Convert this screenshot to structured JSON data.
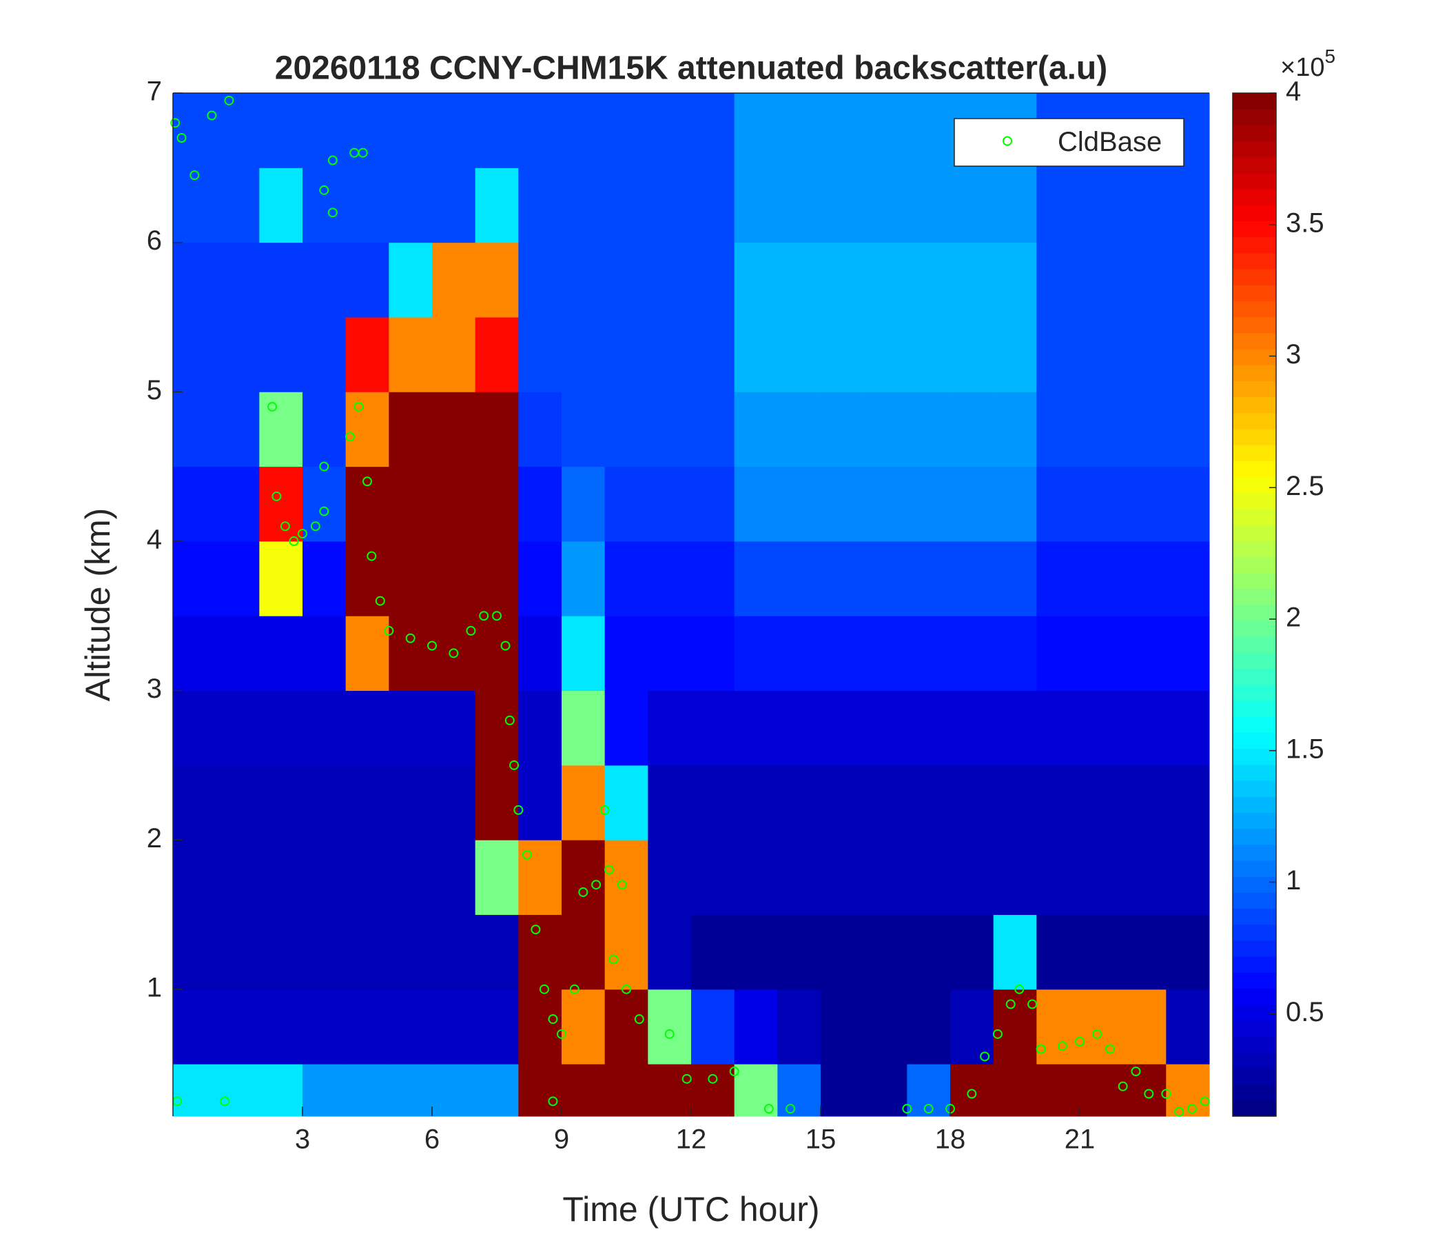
{
  "chart_data": {
    "type": "heatmap",
    "title": "20260118 CCNY-CHM15K attenuated backscatter(a.u)",
    "x_label": "Time (UTC hour)",
    "y_label": "Altitude (km)",
    "xlim": [
      0,
      24
    ],
    "xticks": [
      3,
      6,
      9,
      12,
      15,
      18,
      21
    ],
    "ylim": [
      0.15,
      7
    ],
    "yticks": [
      1,
      2,
      3,
      4,
      5,
      6,
      7
    ],
    "x_edges": [
      0,
      1,
      2,
      3,
      4,
      5,
      6,
      7,
      8,
      9,
      10,
      11,
      12,
      13,
      14,
      15,
      16,
      17,
      18,
      19,
      20,
      21,
      22,
      23,
      24
    ],
    "y_edges": [
      0.15,
      0.5,
      1,
      1.5,
      2,
      2.5,
      3,
      3.5,
      4,
      4.5,
      5,
      5.5,
      6,
      6.5,
      7
    ],
    "values": [
      [
        1.5,
        1.5,
        1.5,
        1.2,
        1.2,
        1.2,
        1.2,
        1.2,
        4,
        4,
        4,
        4,
        4,
        2,
        1,
        0.2,
        0.2,
        1,
        4,
        4,
        4,
        4,
        4,
        3
      ],
      [
        0.4,
        0.4,
        0.4,
        0.4,
        0.4,
        0.4,
        0.4,
        0.4,
        4,
        3,
        4,
        2,
        0.8,
        0.5,
        0.3,
        0.2,
        0.2,
        0.2,
        0.3,
        4,
        3,
        3,
        3,
        0.3
      ],
      [
        0.3,
        0.3,
        0.3,
        0.3,
        0.3,
        0.3,
        0.3,
        0.3,
        4,
        4,
        3,
        0.3,
        0.2,
        0.2,
        0.2,
        0.2,
        0.2,
        0.2,
        0.2,
        1.5,
        0.2,
        0.2,
        0.2,
        0.2
      ],
      [
        0.3,
        0.3,
        0.3,
        0.3,
        0.3,
        0.3,
        0.3,
        2,
        3,
        4,
        3,
        0.3,
        0.3,
        0.3,
        0.3,
        0.3,
        0.3,
        0.3,
        0.3,
        0.3,
        0.3,
        0.3,
        0.3,
        0.3
      ],
      [
        0.35,
        0.35,
        0.35,
        0.35,
        0.35,
        0.35,
        0.35,
        4,
        0.4,
        3,
        1.5,
        0.35,
        0.35,
        0.35,
        0.35,
        0.35,
        0.35,
        0.35,
        0.35,
        0.35,
        0.35,
        0.35,
        0.35,
        0.35
      ],
      [
        0.4,
        0.4,
        0.4,
        0.4,
        0.4,
        0.4,
        0.4,
        4,
        0.4,
        2,
        0.6,
        0.45,
        0.45,
        0.45,
        0.45,
        0.45,
        0.45,
        0.45,
        0.45,
        0.45,
        0.45,
        0.45,
        0.45,
        0.45
      ],
      [
        0.5,
        0.5,
        0.5,
        0.5,
        3,
        4,
        4,
        4,
        0.5,
        1.5,
        0.6,
        0.6,
        0.6,
        0.7,
        0.7,
        0.7,
        0.7,
        0.7,
        0.7,
        0.7,
        0.6,
        0.6,
        0.6,
        0.6
      ],
      [
        0.6,
        0.6,
        2.5,
        0.6,
        4,
        4,
        4,
        4,
        0.6,
        1.2,
        0.7,
        0.7,
        0.7,
        0.9,
        0.9,
        0.9,
        0.9,
        0.9,
        0.9,
        0.9,
        0.7,
        0.7,
        0.7,
        0.7
      ],
      [
        0.7,
        0.7,
        3.5,
        0.9,
        4,
        4,
        4,
        4,
        0.7,
        1,
        0.8,
        0.8,
        0.8,
        1.1,
        1.1,
        1.1,
        1.1,
        1.1,
        1.1,
        1.1,
        0.8,
        0.8,
        0.8,
        0.8
      ],
      [
        0.8,
        0.8,
        2,
        0.8,
        3,
        4,
        4,
        4,
        0.8,
        0.9,
        0.9,
        0.9,
        0.9,
        1.2,
        1.2,
        1.2,
        1.2,
        1.2,
        1.2,
        1.2,
        0.9,
        0.9,
        0.9,
        0.9
      ],
      [
        0.8,
        0.8,
        0.8,
        0.8,
        3.5,
        3,
        3,
        3.5,
        0.9,
        0.9,
        0.9,
        0.9,
        0.9,
        1.3,
        1.3,
        1.3,
        1.3,
        1.3,
        1.3,
        1.3,
        0.9,
        0.9,
        0.9,
        0.9
      ],
      [
        0.8,
        0.8,
        0.8,
        0.8,
        0.8,
        1.5,
        3,
        3,
        0.9,
        0.9,
        0.9,
        0.9,
        0.9,
        1.3,
        1.3,
        1.3,
        1.3,
        1.3,
        1.3,
        1.3,
        0.9,
        0.9,
        0.9,
        0.9
      ],
      [
        0.9,
        0.9,
        1.5,
        0.9,
        0.9,
        0.9,
        0.9,
        1.5,
        0.9,
        0.9,
        0.9,
        0.9,
        0.9,
        1.2,
        1.2,
        1.2,
        1.2,
        1.2,
        1.2,
        1.2,
        0.9,
        0.9,
        0.9,
        0.9
      ],
      [
        0.9,
        0.9,
        0.9,
        0.9,
        0.9,
        0.9,
        0.9,
        0.9,
        0.9,
        0.9,
        0.9,
        0.9,
        0.9,
        1.2,
        1.2,
        1.2,
        1.2,
        1.2,
        1.2,
        1.2,
        0.9,
        0.9,
        0.9,
        0.9
      ]
    ],
    "clim": [
      0.11,
      4
    ],
    "cticks": [
      0.5,
      1,
      1.5,
      2,
      2.5,
      3,
      3.5,
      4
    ],
    "colorbar_multiplier": {
      "base": "×10",
      "exponent": "5"
    },
    "colormap": "jet",
    "colormap_levels": 64,
    "legend_position": "top-right",
    "series": [
      {
        "name": "CldBase",
        "type": "scatter",
        "color": "#00ff00",
        "x": [
          0.05,
          0.2,
          0.5,
          0.9,
          1.3,
          2.3,
          2.4,
          2.6,
          2.8,
          3.0,
          3.3,
          3.5,
          3.5,
          3.5,
          3.7,
          3.7,
          4.2,
          4.4,
          4.1,
          4.3,
          4.5,
          4.6,
          4.8,
          5.0,
          5.5,
          6.0,
          6.5,
          6.9,
          7.2,
          7.5,
          7.7,
          7.8,
          7.9,
          8.0,
          8.2,
          8.4,
          8.6,
          8.8,
          9.0,
          9.3,
          9.5,
          9.8,
          10.1,
          10.4,
          10.0,
          10.2,
          10.5,
          10.8,
          11.5,
          11.9,
          12.5,
          13.0,
          13.8,
          14.3,
          17.0,
          17.5,
          18.0,
          18.5,
          18.8,
          19.1,
          19.4,
          19.6,
          19.9,
          20.1,
          20.6,
          21.0,
          21.4,
          21.7,
          22.0,
          22.3,
          22.6,
          23.0,
          23.3,
          23.6,
          23.9,
          0.1,
          1.2,
          8.8
        ],
        "values": [
          6.8,
          6.7,
          6.45,
          6.85,
          6.95,
          4.9,
          4.3,
          4.1,
          4.0,
          4.05,
          4.1,
          4.2,
          4.5,
          6.35,
          6.55,
          6.2,
          6.6,
          6.6,
          4.7,
          4.9,
          4.4,
          3.9,
          3.6,
          3.4,
          3.35,
          3.3,
          3.25,
          3.4,
          3.5,
          3.5,
          3.3,
          2.8,
          2.5,
          2.2,
          1.9,
          1.4,
          1.0,
          0.8,
          0.7,
          1.0,
          1.65,
          1.7,
          1.8,
          1.7,
          2.2,
          1.2,
          1.0,
          0.8,
          0.7,
          0.4,
          0.4,
          0.45,
          0.2,
          0.2,
          0.2,
          0.2,
          0.2,
          0.3,
          0.55,
          0.7,
          0.9,
          1.0,
          0.9,
          0.6,
          0.62,
          0.65,
          0.7,
          0.6,
          0.35,
          0.45,
          0.3,
          0.3,
          0.18,
          0.2,
          0.25,
          0.25,
          0.25,
          0.25
        ]
      }
    ]
  }
}
